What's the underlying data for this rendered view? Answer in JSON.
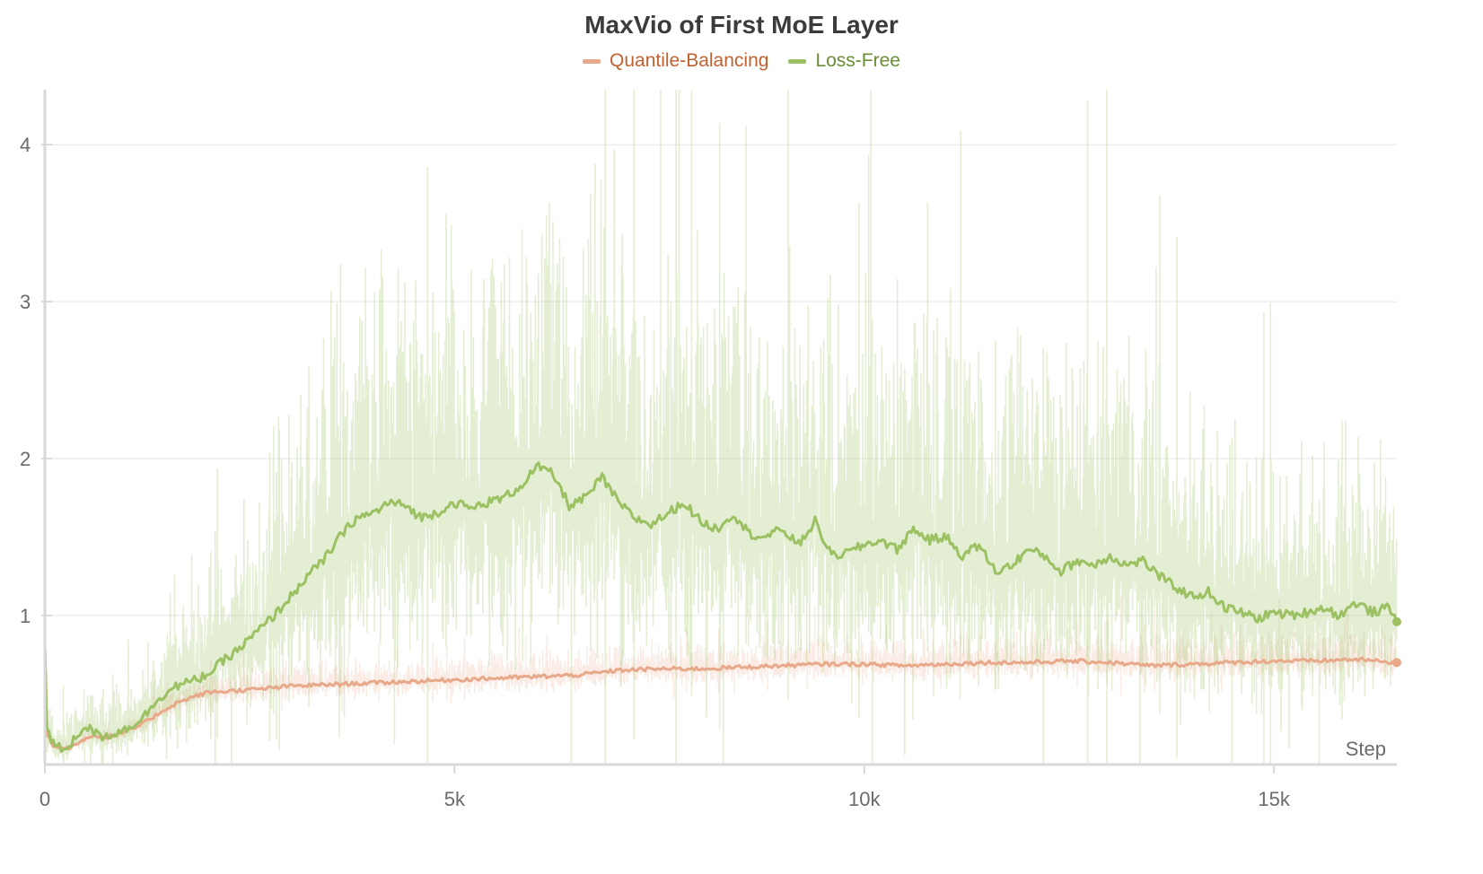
{
  "chart_data": {
    "type": "line",
    "title": "MaxVio of First MoE Layer",
    "xlabel": "Step",
    "ylabel": "",
    "xlim": [
      0,
      16500
    ],
    "ylim": [
      0.05,
      4.35
    ],
    "x_ticks": [
      0,
      5000,
      10000,
      15000
    ],
    "x_tick_labels": [
      "0",
      "5k",
      "10k",
      "15k"
    ],
    "y_ticks": [
      1,
      2,
      3,
      4
    ],
    "y_tick_labels": [
      "1",
      "2",
      "3",
      "4"
    ],
    "grid": true,
    "legend_position": "top-center",
    "series": [
      {
        "name": "Quantile-Balancing",
        "color": "#e8a98a",
        "text_color": "#c0612f",
        "x": [
          0,
          20,
          100,
          200,
          300,
          400,
          500,
          600,
          700,
          800,
          1000,
          1200,
          1400,
          1600,
          1800,
          2000,
          2300,
          2600,
          3000,
          3500,
          4000,
          4500,
          5000,
          5500,
          6000,
          6500,
          7000,
          7500,
          8000,
          8500,
          9000,
          9500,
          10000,
          10500,
          11000,
          11500,
          12000,
          12500,
          13000,
          13500,
          14000,
          14500,
          15000,
          15500,
          16000,
          16500
        ],
        "values": [
          0.78,
          0.25,
          0.17,
          0.15,
          0.16,
          0.18,
          0.22,
          0.24,
          0.22,
          0.23,
          0.26,
          0.31,
          0.38,
          0.44,
          0.48,
          0.51,
          0.52,
          0.53,
          0.55,
          0.56,
          0.57,
          0.58,
          0.59,
          0.6,
          0.61,
          0.62,
          0.65,
          0.66,
          0.66,
          0.67,
          0.68,
          0.69,
          0.69,
          0.68,
          0.69,
          0.7,
          0.7,
          0.71,
          0.7,
          0.68,
          0.69,
          0.7,
          0.71,
          0.71,
          0.72,
          0.7
        ]
      },
      {
        "name": "Loss-Free",
        "color": "#9bc162",
        "text_color": "#6a8d35",
        "x": [
          0,
          20,
          100,
          200,
          300,
          400,
          500,
          600,
          700,
          800,
          1000,
          1200,
          1400,
          1600,
          1800,
          2000,
          2200,
          2400,
          2600,
          2800,
          3000,
          3200,
          3400,
          3600,
          3800,
          4000,
          4200,
          4400,
          4600,
          4800,
          5000,
          5200,
          5400,
          5600,
          5800,
          6000,
          6200,
          6400,
          6600,
          6800,
          7000,
          7200,
          7400,
          7600,
          7800,
          8000,
          8200,
          8400,
          8600,
          8800,
          9000,
          9200,
          9400,
          9600,
          9800,
          10000,
          10200,
          10400,
          10600,
          10800,
          11000,
          11200,
          11400,
          11600,
          11800,
          12000,
          12200,
          12400,
          12600,
          12800,
          13000,
          13200,
          13400,
          13600,
          13800,
          14000,
          14200,
          14400,
          14600,
          14800,
          15000,
          15200,
          15400,
          15600,
          15800,
          16000,
          16200,
          16400,
          16500
        ],
        "values": [
          0.83,
          0.28,
          0.18,
          0.15,
          0.17,
          0.24,
          0.3,
          0.25,
          0.23,
          0.24,
          0.28,
          0.35,
          0.48,
          0.55,
          0.58,
          0.63,
          0.72,
          0.8,
          0.9,
          1.0,
          1.12,
          1.25,
          1.35,
          1.5,
          1.62,
          1.65,
          1.72,
          1.7,
          1.62,
          1.66,
          1.72,
          1.68,
          1.72,
          1.75,
          1.82,
          1.95,
          1.9,
          1.7,
          1.75,
          1.88,
          1.72,
          1.62,
          1.58,
          1.65,
          1.72,
          1.6,
          1.55,
          1.65,
          1.52,
          1.5,
          1.55,
          1.45,
          1.6,
          1.38,
          1.4,
          1.45,
          1.48,
          1.42,
          1.55,
          1.48,
          1.5,
          1.38,
          1.45,
          1.28,
          1.32,
          1.42,
          1.38,
          1.28,
          1.35,
          1.32,
          1.38,
          1.32,
          1.35,
          1.25,
          1.18,
          1.12,
          1.15,
          1.05,
          1.02,
          0.98,
          1.02,
          1.0,
          1.02,
          1.05,
          1.0,
          1.08,
          1.02,
          1.05,
          0.96
        ]
      }
    ]
  }
}
